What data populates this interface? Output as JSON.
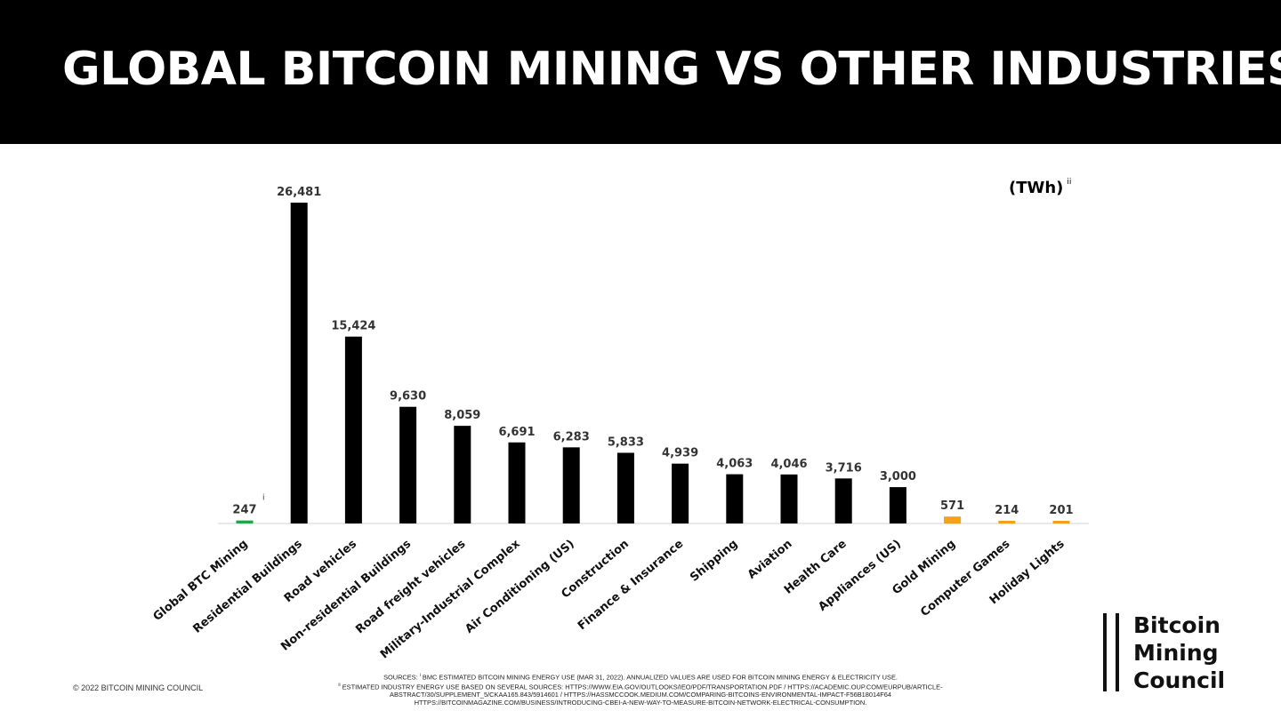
{
  "header": {
    "title": "GLOBAL BITCOIN MINING VS OTHER INDUSTRIES"
  },
  "unit_label": {
    "text": "(TWh)",
    "note_marker": "ii"
  },
  "chart_data": {
    "type": "bar",
    "title": "GLOBAL BITCOIN MINING VS OTHER INDUSTRIES",
    "ylabel": "(TWh)",
    "ylim": [
      0,
      26481
    ],
    "grid": false,
    "categories": [
      "Global BTC Mining",
      "Residential Buildings",
      "Road vehicles",
      "Non-residential Buildings",
      "Road freight vehicles",
      "Military-Industrial Complex",
      "Air Conditioning (US)",
      "Construction",
      "Finance & Insurance",
      "Shipping",
      "Aviation",
      "Health Care",
      "Appliances (US)",
      "Gold Mining",
      "Computer Games",
      "Holiday Lights"
    ],
    "values": [
      247,
      26481,
      15424,
      9630,
      8059,
      6691,
      6283,
      5833,
      4939,
      4063,
      4046,
      3716,
      3000,
      571,
      214,
      201
    ],
    "value_labels": [
      "247",
      "26,481",
      "15,424",
      "9,630",
      "8,059",
      "6,691",
      "6,283",
      "5,833",
      "4,939",
      "4,063",
      "4,046",
      "3,716",
      "3,000",
      "571",
      "214",
      "201"
    ],
    "colors": [
      "#1fa64a",
      "#000000",
      "#000000",
      "#000000",
      "#000000",
      "#000000",
      "#000000",
      "#000000",
      "#000000",
      "#000000",
      "#000000",
      "#000000",
      "#000000",
      "#f5a01a",
      "#f5a01a",
      "#f5a01a"
    ],
    "annotation": {
      "category": "Global BTC Mining",
      "text": "i"
    }
  },
  "footer": {
    "copyright": "© 2022 BITCOIN MINING COUNCIL",
    "sources": [
      {
        "marker": "i",
        "text": "BMC ESTIMATED BITCOIN MINING ENERGY USE (MAR 31, 2022). ANNUALIZED VALUES ARE USED FOR BITCOIN MINING ENERGY & ELECTRICITY USE.",
        "prefix": "SOURCES:"
      },
      {
        "marker": "ii",
        "text": "ESTIMATED INDUSTRY ENERGY USE BASED ON SEVERAL SOURCES: HTTPS://WWW.EIA.GOV/OUTLOOKS/IEO/PDF/TRANSPORTATION.PDF / HTTPS://ACADEMIC.OUP.COM/EURPUB/ARTICLE-"
      },
      {
        "text": "ABSTRACT/30/SUPPLEMENT_5/CKAA165.843/5914601 / HTTPS://HASSMCCOOK.MEDIUM.COM/COMPARING-BITCOINS-ENVIRONMENTAL-IMPACT-F56B18014F64"
      },
      {
        "text": "HTTPS://BITCOINMAGAZINE.COM/BUSINESS/INTRODUCING-CBEI-A-NEW-WAY-TO-MEASURE-BITCOIN-NETWORK-ELECTRICAL-CONSUMPTION."
      }
    ]
  },
  "logo": {
    "lines": [
      "Bitcoin",
      "Mining",
      "Council"
    ]
  }
}
